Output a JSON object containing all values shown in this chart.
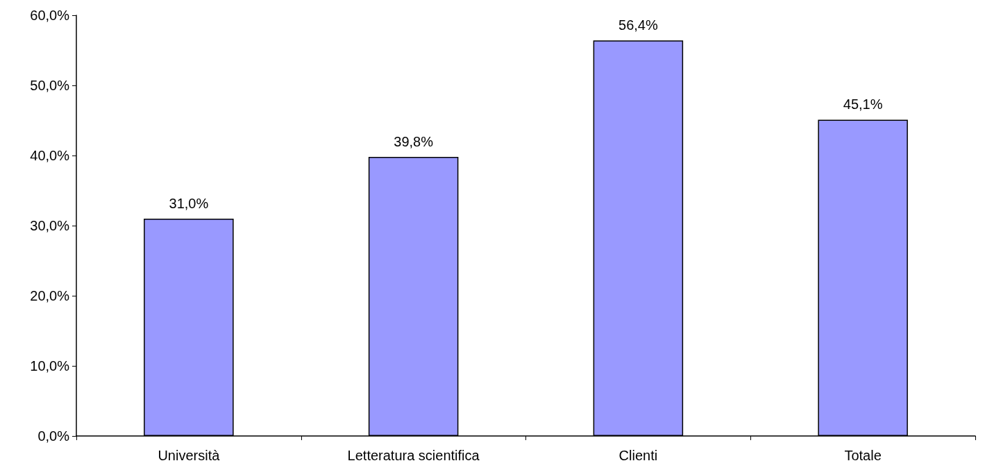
{
  "chart_data": {
    "type": "bar",
    "categories": [
      "Università",
      "Letteratura scientifica",
      "Clienti",
      "Totale"
    ],
    "values": [
      31.0,
      39.8,
      56.4,
      45.1
    ],
    "value_labels": [
      "31,0%",
      "39,8%",
      "56,4%",
      "45,1%"
    ],
    "color": "#9999ff",
    "ylim": [
      0,
      60
    ],
    "yticks": [
      {
        "value": 0,
        "label": "0,0%"
      },
      {
        "value": 10,
        "label": "10,0%"
      },
      {
        "value": 20,
        "label": "20,0%"
      },
      {
        "value": 30,
        "label": "30,0%"
      },
      {
        "value": 40,
        "label": "40,0%"
      },
      {
        "value": 50,
        "label": "50,0%"
      },
      {
        "value": 60,
        "label": "60,0%"
      }
    ],
    "grid": false
  }
}
